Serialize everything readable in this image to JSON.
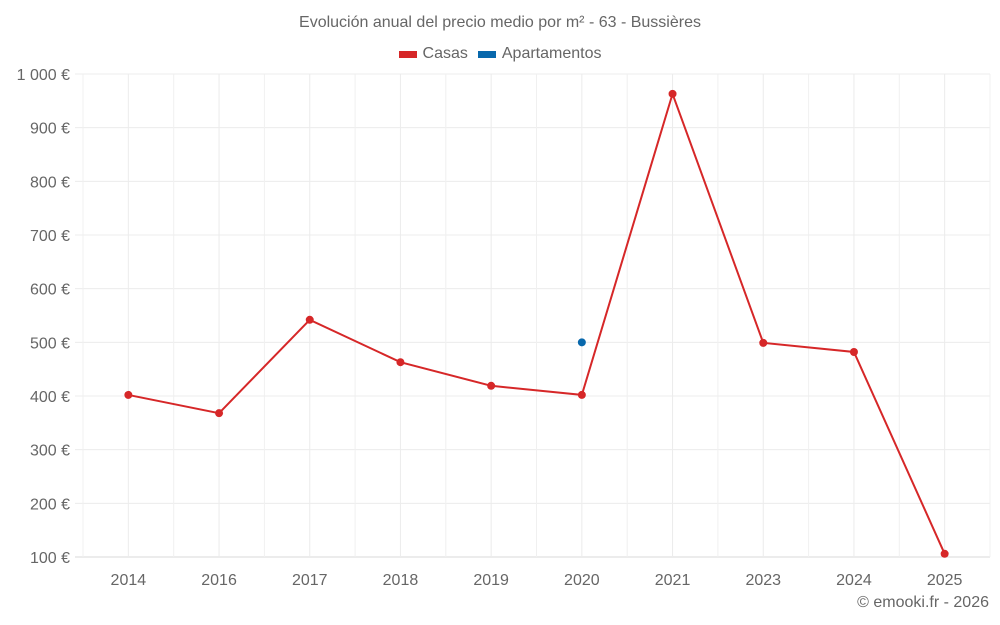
{
  "chart_data": {
    "type": "line",
    "title": "Evolución anual del precio medio por m² - 63 - Bussières",
    "xlabel": "",
    "ylabel": "",
    "categories": [
      "2014",
      "2016",
      "2017",
      "2018",
      "2019",
      "2020",
      "2021",
      "2023",
      "2024",
      "2025"
    ],
    "series": [
      {
        "name": "Casas",
        "color": "#d62728",
        "values": [
          402,
          368,
          542,
          463,
          419,
          402,
          963,
          499,
          482,
          106
        ]
      },
      {
        "name": "Apartamentos",
        "color": "#0868ac",
        "values": [
          null,
          null,
          null,
          null,
          null,
          500,
          null,
          null,
          null,
          null
        ]
      }
    ],
    "ylim": [
      100,
      1000
    ],
    "yticks": [
      "1 000 €",
      "900 €",
      "800 €",
      "700 €",
      "600 €",
      "500 €",
      "400 €",
      "300 €",
      "200 €",
      "100 €"
    ],
    "grid": true,
    "legend_position": "top"
  },
  "header": {
    "title": "Evolución anual del precio medio por m² - 63 - Bussières"
  },
  "legend": {
    "items": [
      {
        "label": "Casas",
        "color": "#d62728"
      },
      {
        "label": "Apartamentos",
        "color": "#0868ac"
      }
    ]
  },
  "footer": {
    "credit": "© emooki.fr - 2026"
  }
}
